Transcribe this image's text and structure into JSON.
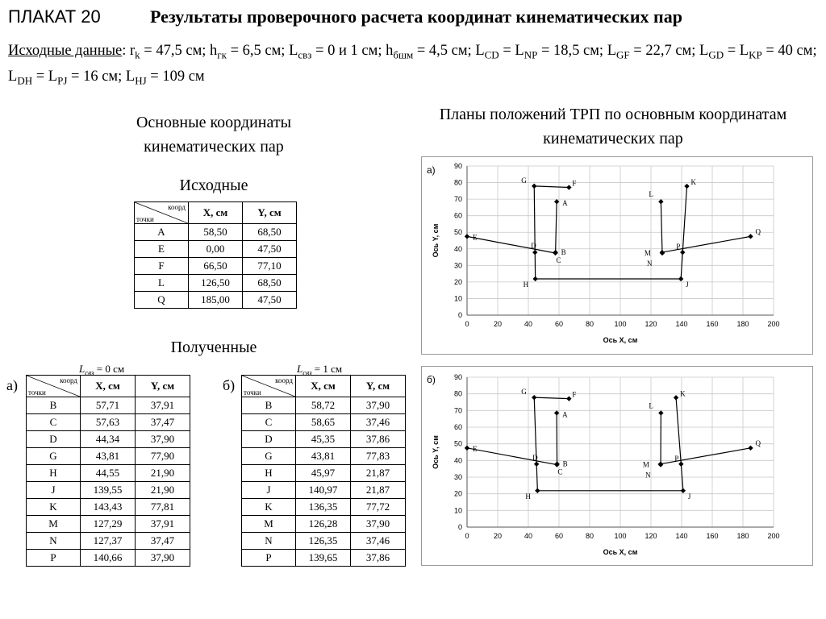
{
  "header": {
    "plakat": "ПЛАКАТ 20",
    "title": "Результаты проверочного расчета координат кинематических пар"
  },
  "params": {
    "label": "Исходные данные",
    "text": ": r_k = 47,5 см; h_гк = 6,5 см; L_свз = 0 и 1 см; h_бшм = 4,5 см; L_CD = L_NP = 18,5 см; L_GF = 22,7 см; L_GD = L_KP = 40 см; L_DH = L_PJ = 16 см; L_HJ = 109 см"
  },
  "headings": {
    "coords": "Основные координаты кинематических пар",
    "plans": "Планы положений ТРП по основным координатам кинематических пар",
    "initial": "Исходные",
    "obtained": "Полученные"
  },
  "tables": {
    "diag_top": "коорд",
    "diag_bottom": "точки",
    "col_x": "X, см",
    "col_y": "Y, см",
    "initial": [
      [
        "A",
        "58,50",
        "68,50"
      ],
      [
        "E",
        "0,00",
        "47,50"
      ],
      [
        "F",
        "66,50",
        "77,10"
      ],
      [
        "L",
        "126,50",
        "68,50"
      ],
      [
        "Q",
        "185,00",
        "47,50"
      ]
    ],
    "a_label": "а)",
    "a_cond": "= 0 см",
    "a_rows": [
      [
        "B",
        "57,71",
        "37,91"
      ],
      [
        "C",
        "57,63",
        "37,47"
      ],
      [
        "D",
        "44,34",
        "37,90"
      ],
      [
        "G",
        "43,81",
        "77,90"
      ],
      [
        "H",
        "44,55",
        "21,90"
      ],
      [
        "J",
        "139,55",
        "21,90"
      ],
      [
        "K",
        "143,43",
        "77,81"
      ],
      [
        "M",
        "127,29",
        "37,91"
      ],
      [
        "N",
        "127,37",
        "37,47"
      ],
      [
        "P",
        "140,66",
        "37,90"
      ]
    ],
    "b_label": "б)",
    "b_cond": "= 1 см",
    "b_rows": [
      [
        "B",
        "58,72",
        "37,90"
      ],
      [
        "C",
        "58,65",
        "37,46"
      ],
      [
        "D",
        "45,35",
        "37,86"
      ],
      [
        "G",
        "43,81",
        "77,83"
      ],
      [
        "H",
        "45,97",
        "21,87"
      ],
      [
        "J",
        "140,97",
        "21,87"
      ],
      [
        "K",
        "136,35",
        "77,72"
      ],
      [
        "M",
        "126,28",
        "37,90"
      ],
      [
        "N",
        "126,35",
        "37,46"
      ],
      [
        "P",
        "139,65",
        "37,86"
      ]
    ]
  },
  "chart_data": [
    {
      "type": "scatter",
      "panel_label": "а)",
      "xlabel": "Ось X, см",
      "ylabel": "Ось Y, см",
      "xlim": [
        0,
        200
      ],
      "ylim": [
        0,
        90
      ],
      "xticks": [
        0,
        20,
        40,
        60,
        80,
        100,
        120,
        140,
        160,
        180,
        200
      ],
      "yticks": [
        0,
        10,
        20,
        30,
        40,
        50,
        60,
        70,
        80,
        90
      ],
      "grid": true,
      "color": "#000000",
      "points": [
        {
          "name": "A",
          "x": 58.5,
          "y": 68.5
        },
        {
          "name": "E",
          "x": 0,
          "y": 47.5
        },
        {
          "name": "F",
          "x": 66.5,
          "y": 77.1
        },
        {
          "name": "L",
          "x": 126.5,
          "y": 68.5
        },
        {
          "name": "Q",
          "x": 185,
          "y": 47.5
        },
        {
          "name": "B",
          "x": 57.71,
          "y": 37.91
        },
        {
          "name": "C",
          "x": 57.63,
          "y": 37.47
        },
        {
          "name": "D",
          "x": 44.34,
          "y": 37.9
        },
        {
          "name": "G",
          "x": 43.81,
          "y": 77.9
        },
        {
          "name": "H",
          "x": 44.55,
          "y": 21.9
        },
        {
          "name": "J",
          "x": 139.55,
          "y": 21.9
        },
        {
          "name": "K",
          "x": 143.43,
          "y": 77.81
        },
        {
          "name": "M",
          "x": 127.29,
          "y": 37.91
        },
        {
          "name": "N",
          "x": 127.37,
          "y": 37.47
        },
        {
          "name": "P",
          "x": 140.66,
          "y": 37.9
        }
      ],
      "segments": [
        [
          "G",
          "F"
        ],
        [
          "G",
          "D"
        ],
        [
          "A",
          "B"
        ],
        [
          "E",
          "C"
        ],
        [
          "D",
          "H"
        ],
        [
          "H",
          "J"
        ],
        [
          "L",
          "N"
        ],
        [
          "K",
          "P"
        ],
        [
          "M",
          "Q"
        ],
        [
          "P",
          "J"
        ]
      ]
    },
    {
      "type": "scatter",
      "panel_label": "б)",
      "xlabel": "Ось X, см",
      "ylabel": "Ось Y, см",
      "xlim": [
        0,
        200
      ],
      "ylim": [
        0,
        90
      ],
      "xticks": [
        0,
        20,
        40,
        60,
        80,
        100,
        120,
        140,
        160,
        180,
        200
      ],
      "yticks": [
        0,
        10,
        20,
        30,
        40,
        50,
        60,
        70,
        80,
        90
      ],
      "grid": true,
      "color": "#000000",
      "points": [
        {
          "name": "A",
          "x": 58.5,
          "y": 68.5
        },
        {
          "name": "E",
          "x": 0,
          "y": 47.5
        },
        {
          "name": "F",
          "x": 66.5,
          "y": 77.1
        },
        {
          "name": "L",
          "x": 126.5,
          "y": 68.5
        },
        {
          "name": "Q",
          "x": 185,
          "y": 47.5
        },
        {
          "name": "B",
          "x": 58.72,
          "y": 37.9
        },
        {
          "name": "C",
          "x": 58.65,
          "y": 37.46
        },
        {
          "name": "D",
          "x": 45.35,
          "y": 37.86
        },
        {
          "name": "G",
          "x": 43.81,
          "y": 77.83
        },
        {
          "name": "H",
          "x": 45.97,
          "y": 21.87
        },
        {
          "name": "J",
          "x": 140.97,
          "y": 21.87
        },
        {
          "name": "K",
          "x": 136.35,
          "y": 77.72
        },
        {
          "name": "M",
          "x": 126.28,
          "y": 37.9
        },
        {
          "name": "N",
          "x": 126.35,
          "y": 37.46
        },
        {
          "name": "P",
          "x": 139.65,
          "y": 37.86
        }
      ],
      "segments": [
        [
          "G",
          "F"
        ],
        [
          "G",
          "D"
        ],
        [
          "A",
          "B"
        ],
        [
          "E",
          "C"
        ],
        [
          "D",
          "H"
        ],
        [
          "H",
          "J"
        ],
        [
          "L",
          "N"
        ],
        [
          "K",
          "P"
        ],
        [
          "M",
          "Q"
        ],
        [
          "P",
          "J"
        ]
      ]
    }
  ]
}
